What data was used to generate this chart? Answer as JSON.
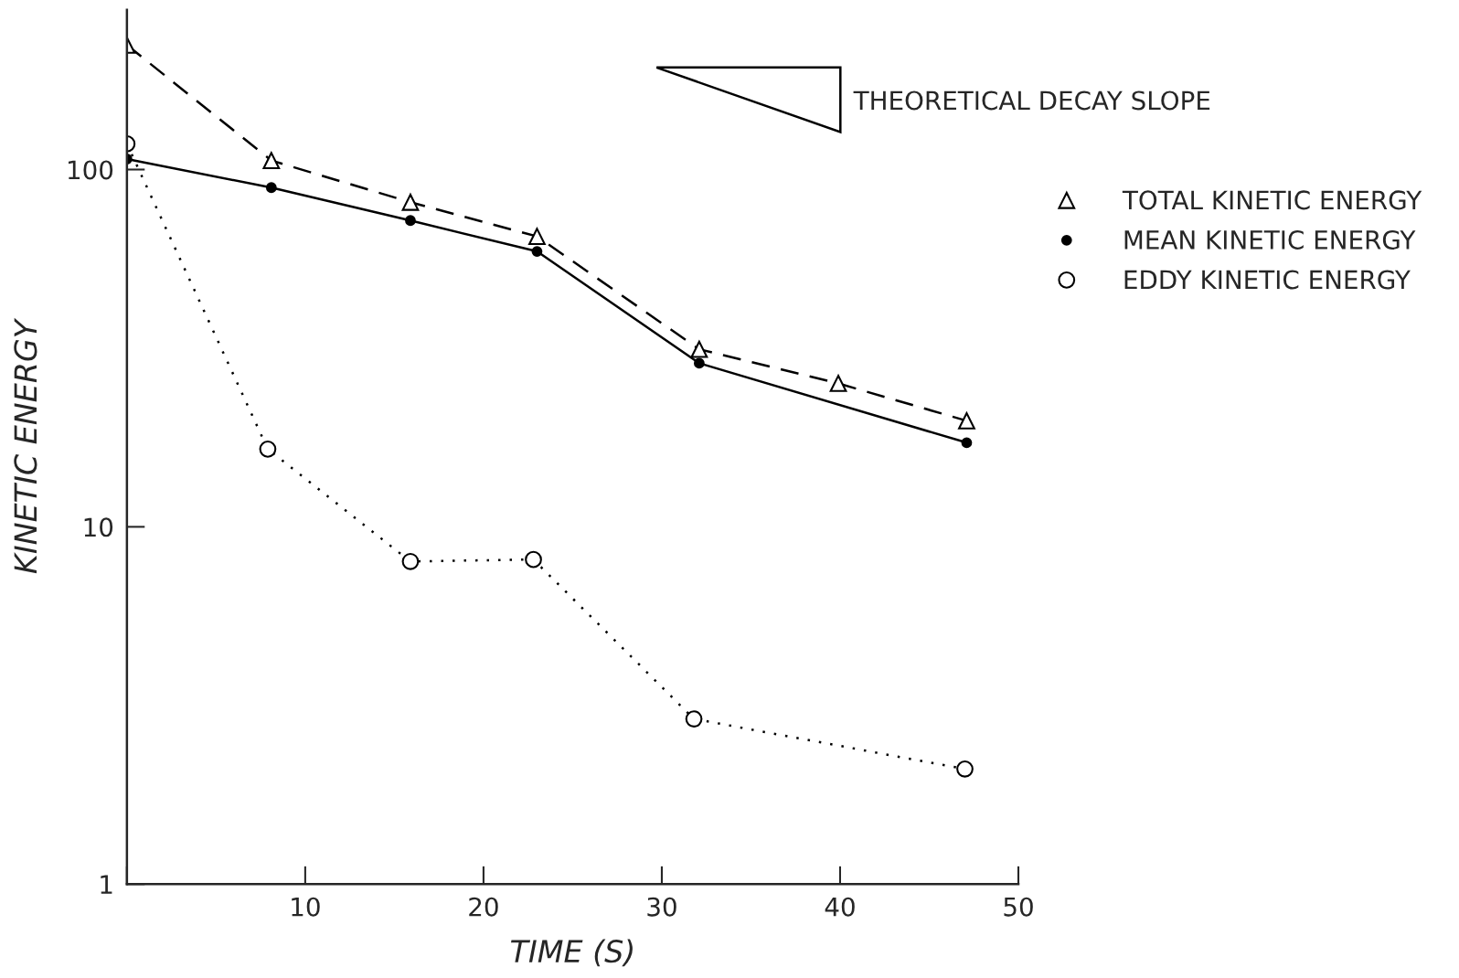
{
  "chart_data": {
    "type": "line",
    "xlabel": "TIME (S)",
    "ylabel": "KINETIC ENERGY",
    "xlim": [
      0,
      50
    ],
    "xticks": [
      {
        "value": 0,
        "label": null
      },
      10,
      20,
      30,
      40,
      50
    ],
    "ylim": [
      1,
      280
    ],
    "yticks": [
      1,
      10,
      100
    ],
    "log": true,
    "grid": false,
    "legend": "right",
    "annotations": [
      "THEORETICAL DECAY SLOPE"
    ],
    "series": [
      {
        "name": "TOTAL KINETIC ENERGY",
        "color": "#000000",
        "marker": "triangle",
        "line_style": "dashed",
        "x": [
          0,
          8.1,
          15.9,
          23,
          32.1,
          39.9,
          47.1
        ],
        "values": [
          223,
          106,
          81,
          65,
          31.4,
          25.2,
          19.8
        ]
      },
      {
        "name": "MEAN KINETIC ENERGY",
        "color": "#000000",
        "marker": "circle",
        "line_style": "solid",
        "x": [
          0,
          8.1,
          15.9,
          23,
          32.1,
          47.1
        ],
        "values": [
          107,
          89,
          72,
          59,
          28.7,
          17.2
        ]
      },
      {
        "name": "EDDY KINETIC ENERGY",
        "color": "#000000",
        "marker": "circle",
        "line_style": "dotted",
        "x": [
          0,
          7.9,
          15.9,
          22.8,
          31.8,
          47.0
        ],
        "values": [
          118,
          16.5,
          8.0,
          8.1,
          2.9,
          2.1
        ]
      }
    ]
  }
}
